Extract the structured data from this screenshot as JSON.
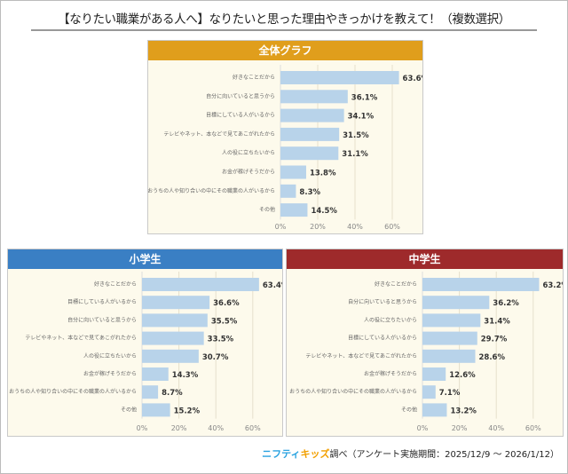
{
  "title": "【なりたい職業がある人へ】なりたいと思った理由やきっかけを教えて！（複数選択）",
  "footer": {
    "logo_part1": "ニフティ",
    "logo_part2": "キッズ",
    "text": "調べ（アンケート実施期間：2025/12/9 ～ 2026/1/12）"
  },
  "colors": {
    "bar": "#b8d3ea",
    "overall_header": "#e09e1c",
    "elementary_header": "#3a7fc4",
    "junior_high_header": "#9e2a2b",
    "panel_bg": "#fdfaec"
  },
  "chart_data": [
    {
      "type": "bar",
      "orientation": "horizontal",
      "title": "全体グラフ",
      "categories": [
        "好きなことだから",
        "自分に向いていると思うから",
        "目標にしている人がいるから",
        "テレビやネット、本などで見てあこがれたから",
        "人の役に立ちたいから",
        "お金が稼げそうだから",
        "おうちの人や知り合いの中にその職業の人がいるから",
        "その他"
      ],
      "values": [
        63.6,
        36.1,
        34.1,
        31.5,
        31.1,
        13.8,
        8.3,
        14.5
      ],
      "value_labels": [
        "63.6%",
        "36.1%",
        "34.1%",
        "31.5%",
        "31.1%",
        "13.8%",
        "8.3%",
        "14.5%"
      ],
      "xlim": [
        0,
        70
      ],
      "ticks": [
        "0%",
        "20%",
        "40%",
        "60%"
      ],
      "grid": true
    },
    {
      "type": "bar",
      "orientation": "horizontal",
      "title": "小学生",
      "categories": [
        "好きなことだから",
        "目標にしている人がいるから",
        "自分に向いていると思うから",
        "テレビやネット、本などで見てあこがれたから",
        "人の役に立ちたいから",
        "お金が稼げそうだから",
        "おうちの人や知り合いの中にその職業の人がいるから",
        "その他"
      ],
      "values": [
        63.4,
        36.6,
        35.5,
        33.5,
        30.7,
        14.3,
        8.7,
        15.2
      ],
      "value_labels": [
        "63.4%",
        "36.6%",
        "35.5%",
        "33.5%",
        "30.7%",
        "14.3%",
        "8.7%",
        "15.2%"
      ],
      "xlim": [
        0,
        70
      ],
      "ticks": [
        "0%",
        "20%",
        "40%",
        "60%"
      ],
      "grid": true
    },
    {
      "type": "bar",
      "orientation": "horizontal",
      "title": "中学生",
      "categories": [
        "好きなことだから",
        "自分に向いていると思うから",
        "人の役に立ちたいから",
        "目標にしている人がいるから",
        "テレビやネット、本などで見てあこがれたから",
        "お金が稼げそうだから",
        "おうちの人や知り合いの中にその職業の人がいるから",
        "その他"
      ],
      "values": [
        63.2,
        36.2,
        31.4,
        29.7,
        28.6,
        12.6,
        7.1,
        13.2
      ],
      "value_labels": [
        "63.2%",
        "36.2%",
        "31.4%",
        "29.7%",
        "28.6%",
        "12.6%",
        "7.1%",
        "13.2%"
      ],
      "xlim": [
        0,
        70
      ],
      "ticks": [
        "0%",
        "20%",
        "40%",
        "60%"
      ],
      "grid": true
    }
  ]
}
